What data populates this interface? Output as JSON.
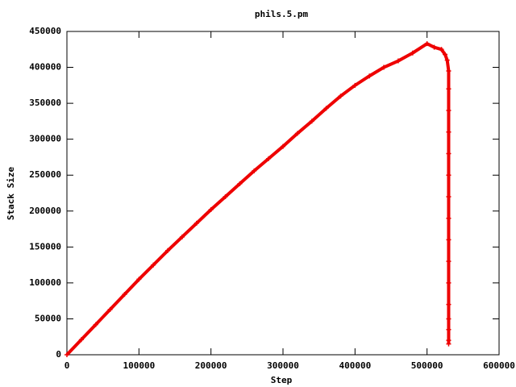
{
  "chart_data": {
    "type": "scatter",
    "title": "phils.5.pm",
    "x_label": "Step",
    "y_label": "Stack Size",
    "marker": "plus",
    "color": "#ee0000",
    "x": [
      0,
      20000,
      40000,
      60000,
      80000,
      100000,
      120000,
      140000,
      160000,
      180000,
      200000,
      220000,
      240000,
      260000,
      280000,
      300000,
      320000,
      340000,
      360000,
      380000,
      400000,
      420000,
      440000,
      460000,
      480000,
      500000,
      510000,
      520000,
      525000,
      528000,
      530000,
      530000,
      530000,
      530000,
      530000,
      530000,
      530000,
      530000,
      530000,
      530000,
      530000,
      530000,
      530000,
      530000,
      530000,
      530000
    ],
    "y": [
      0,
      21000,
      42000,
      63000,
      84000,
      105000,
      125000,
      145000,
      164000,
      183000,
      202000,
      220000,
      238000,
      256000,
      273000,
      290000,
      308000,
      325000,
      343000,
      360000,
      375000,
      388000,
      400000,
      409000,
      420000,
      433000,
      428000,
      425000,
      418000,
      410000,
      395000,
      370000,
      340000,
      310000,
      280000,
      250000,
      220000,
      190000,
      160000,
      130000,
      100000,
      70000,
      50000,
      35000,
      20000,
      15000
    ],
    "xlim": [
      0,
      600000
    ],
    "xticks": [
      0,
      100000,
      200000,
      300000,
      400000,
      500000,
      600000
    ],
    "ylim": [
      0,
      450000
    ],
    "yticks": [
      0,
      50000,
      100000,
      150000,
      200000,
      250000,
      300000,
      350000,
      400000,
      450000
    ]
  }
}
